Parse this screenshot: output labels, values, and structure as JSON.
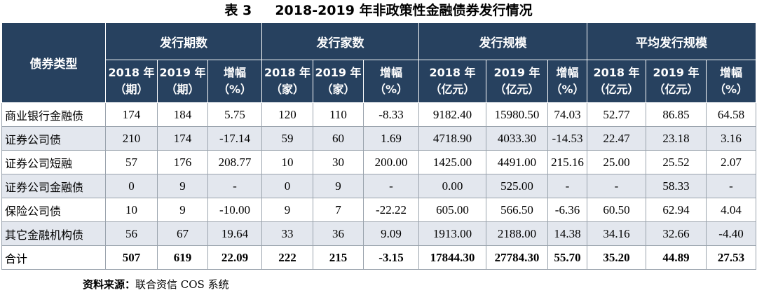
{
  "title": "表 3     2018-2019 年非政策性金融债券发行情况",
  "header": {
    "row_label": "债券类型",
    "groups": [
      "发行期数",
      "发行家数",
      "发行规模",
      "平均发行规模"
    ],
    "sub": [
      [
        "2018 年",
        "（期）"
      ],
      [
        "2019 年",
        "（期）"
      ],
      [
        "增幅",
        "（%）"
      ],
      [
        "2018 年",
        "（家）"
      ],
      [
        "2019 年",
        "（家）"
      ],
      [
        "增幅",
        "（%）"
      ],
      [
        "2018 年",
        "（亿元）"
      ],
      [
        "2019 年",
        "（亿元）"
      ],
      [
        "增幅",
        "（%）"
      ],
      [
        "2018 年",
        "（亿元）"
      ],
      [
        "2019 年",
        "（亿元）"
      ],
      [
        "增幅",
        "（%）"
      ]
    ]
  },
  "rows": [
    {
      "label": "商业银行金融债",
      "values": [
        "174",
        "184",
        "5.75",
        "120",
        "110",
        "-8.33",
        "9182.40",
        "15980.50",
        "74.03",
        "52.77",
        "86.85",
        "64.58"
      ]
    },
    {
      "label": "证券公司债",
      "values": [
        "210",
        "174",
        "-17.14",
        "59",
        "60",
        "1.69",
        "4718.90",
        "4033.30",
        "-14.53",
        "22.47",
        "23.18",
        "3.16"
      ]
    },
    {
      "label": "证券公司短融",
      "values": [
        "57",
        "176",
        "208.77",
        "10",
        "30",
        "200.00",
        "1425.00",
        "4491.00",
        "215.16",
        "25.00",
        "25.52",
        "2.07"
      ]
    },
    {
      "label": "证券公司金融债",
      "values": [
        "0",
        "9",
        "-",
        "0",
        "9",
        "-",
        "0.00",
        "525.00",
        "-",
        "-",
        "58.33",
        "-"
      ]
    },
    {
      "label": "保险公司债",
      "values": [
        "10",
        "9",
        "-10.00",
        "9",
        "7",
        "-22.22",
        "605.00",
        "566.50",
        "-6.36",
        "60.50",
        "62.94",
        "4.04"
      ]
    },
    {
      "label": "其它金融机构债",
      "values": [
        "56",
        "67",
        "19.64",
        "33",
        "36",
        "9.09",
        "1913.00",
        "2188.00",
        "14.38",
        "34.16",
        "32.66",
        "-4.40"
      ]
    },
    {
      "label": "合计",
      "values": [
        "507",
        "619",
        "22.09",
        "222",
        "215",
        "-3.15",
        "17844.30",
        "27784.30",
        "55.70",
        "35.20",
        "44.89",
        "27.53"
      ]
    }
  ],
  "note": {
    "label": "资料来源：",
    "text": "联合资信 COS 系统"
  }
}
